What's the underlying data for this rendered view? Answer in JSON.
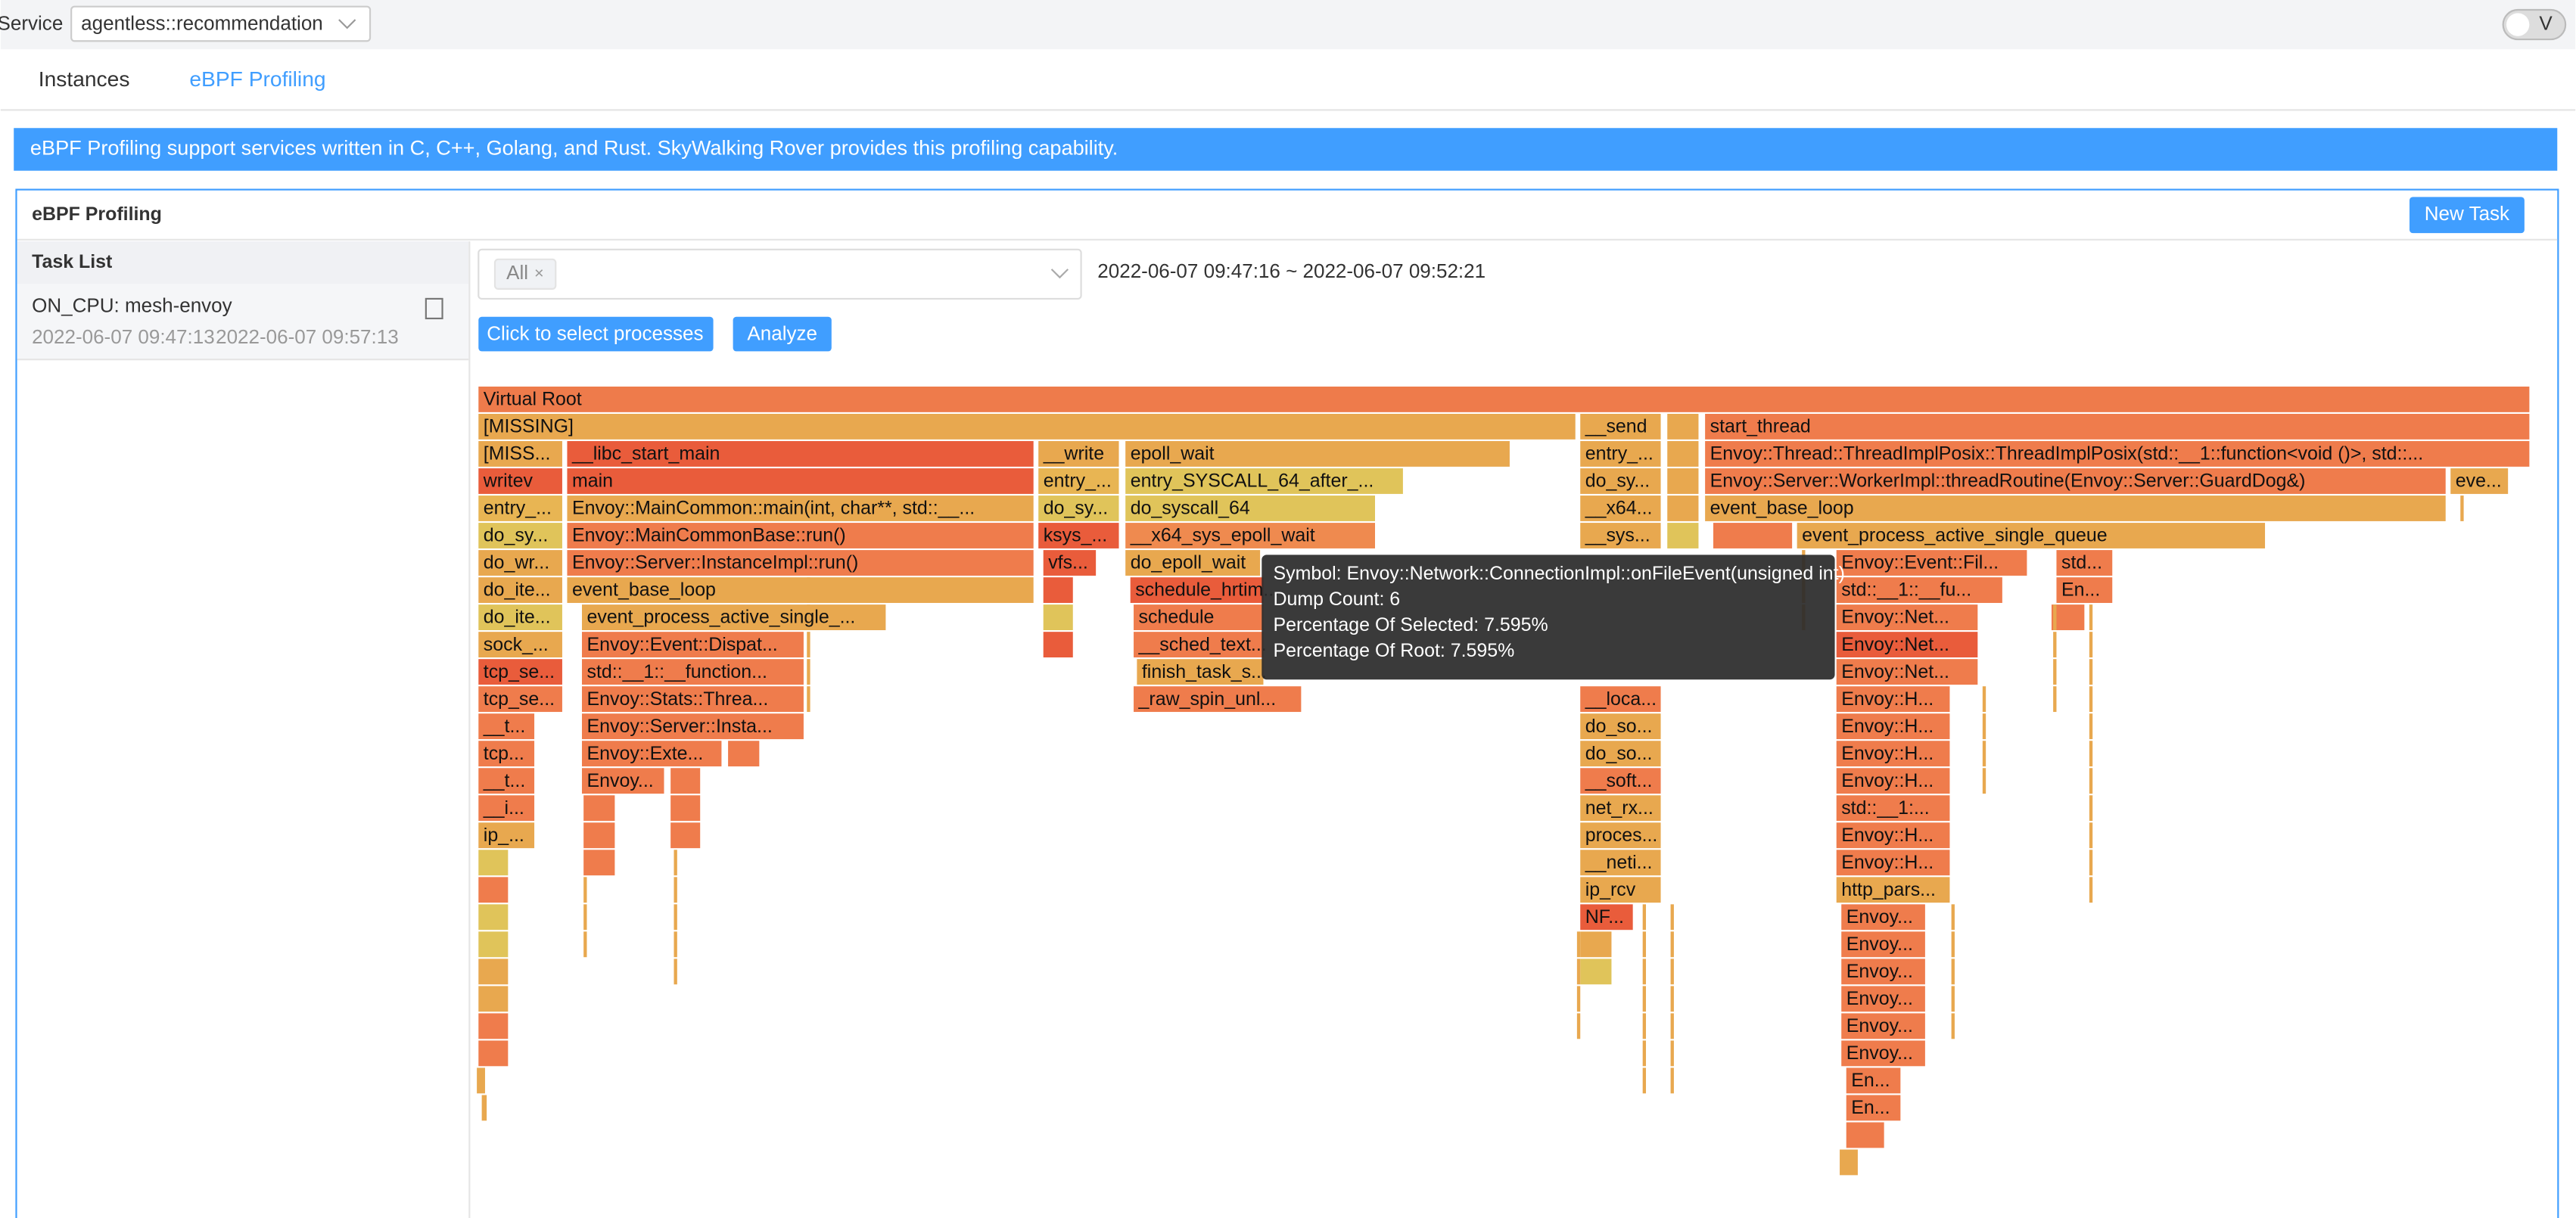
{
  "header": {
    "service_label": "Service",
    "service_value": "agentless::recommendation",
    "toggle": "V"
  },
  "tabs": [
    "Instances",
    "eBPF Profiling"
  ],
  "banner": "eBPF Profiling support services written in C, C++, Golang, and Rust. SkyWalking Rover provides this profiling capability.",
  "panel": {
    "title": "eBPF Profiling",
    "new_task": "New Task"
  },
  "task_list": {
    "title": "Task List",
    "tasks": [
      {
        "name": "ON_CPU: mesh-envoy",
        "start": "2022-06-07 09:47:13",
        "end": "2022-06-07 09:57:13"
      }
    ]
  },
  "filter": {
    "tag": "All",
    "time_range": "2022-06-07 09:47:16 ~ 2022-06-07 09:52:21",
    "select_button": "Click to select processes",
    "analyze_button": "Analyze"
  },
  "flame": {
    "frames": [
      "Virtual Root",
      "[MISSING]",
      "__send",
      "start_thread",
      "[MISS...",
      "__libc_start_main",
      "__write",
      "epoll_wait",
      "entry_...",
      "Envoy::Thread::ThreadImplPosix::ThreadImplPosix(std::__1::function<void ()>, std::...",
      "writev",
      "main",
      "entry_...",
      "entry_SYSCALL_64_after_...",
      "do_sy...",
      "Envoy::Server::WorkerImpl::threadRoutine(Envoy::Server::GuardDog&)",
      "eve...",
      "entry_...",
      "Envoy::MainCommon::main(int, char**, std::__...",
      "do_sy...",
      "do_syscall_64",
      "__x64...",
      "event_base_loop",
      "do_sy...",
      "Envoy::MainCommonBase::run()",
      "ksys_...",
      "__x64_sys_epoll_wait",
      "__sys...",
      "event_process_active_single_queue",
      "do_wr...",
      "Envoy::Server::InstanceImpl::run()",
      "vfs...",
      "do_epoll_wait",
      "Envoy::Event::Fil...",
      "std...",
      "do_ite...",
      "event_base_loop",
      "schedule_hrtim...",
      "std::__1::__fu...",
      "En...",
      "do_ite...",
      "event_process_active_single_...",
      "schedule",
      "Envoy::Net...",
      "sock_...",
      "Envoy::Event::Dispat...",
      "__sched_text...",
      "Envoy::Net...",
      "tcp_se...",
      "std::__1::__function...",
      "finish_task_s...",
      "Envoy::Net...",
      "tcp_se...",
      "Envoy::Stats::Threa...",
      "_raw_spin_unl...",
      "__loca...",
      "Envoy::H...",
      "__t...",
      "Envoy::Server::Insta...",
      "do_so...",
      "Envoy::H...",
      "tcp...",
      "Envoy::Exte...",
      "do_so...",
      "Envoy::H...",
      "__t...",
      "Envoy...",
      "__soft...",
      "Envoy::H...",
      "__i...",
      "net_rx...",
      "std::__1:...",
      "ip_...",
      "proces...",
      "Envoy::H...",
      "__neti...",
      "Envoy::H...",
      "ip_rcv",
      "http_pars...",
      "NF...",
      "Envoy...",
      "Envoy...",
      "Envoy...",
      "Envoy...",
      "Envoy...",
      "Envoy...",
      "En...",
      "En..."
    ],
    "tooltip": [
      "Symbol: Envoy::Network::ConnectionImpl::onFileEvent(unsigned int)",
      "Dump Count: 6",
      "Percentage Of Selected: 7.595%",
      "Percentage Of Root: 7.595%"
    ]
  }
}
